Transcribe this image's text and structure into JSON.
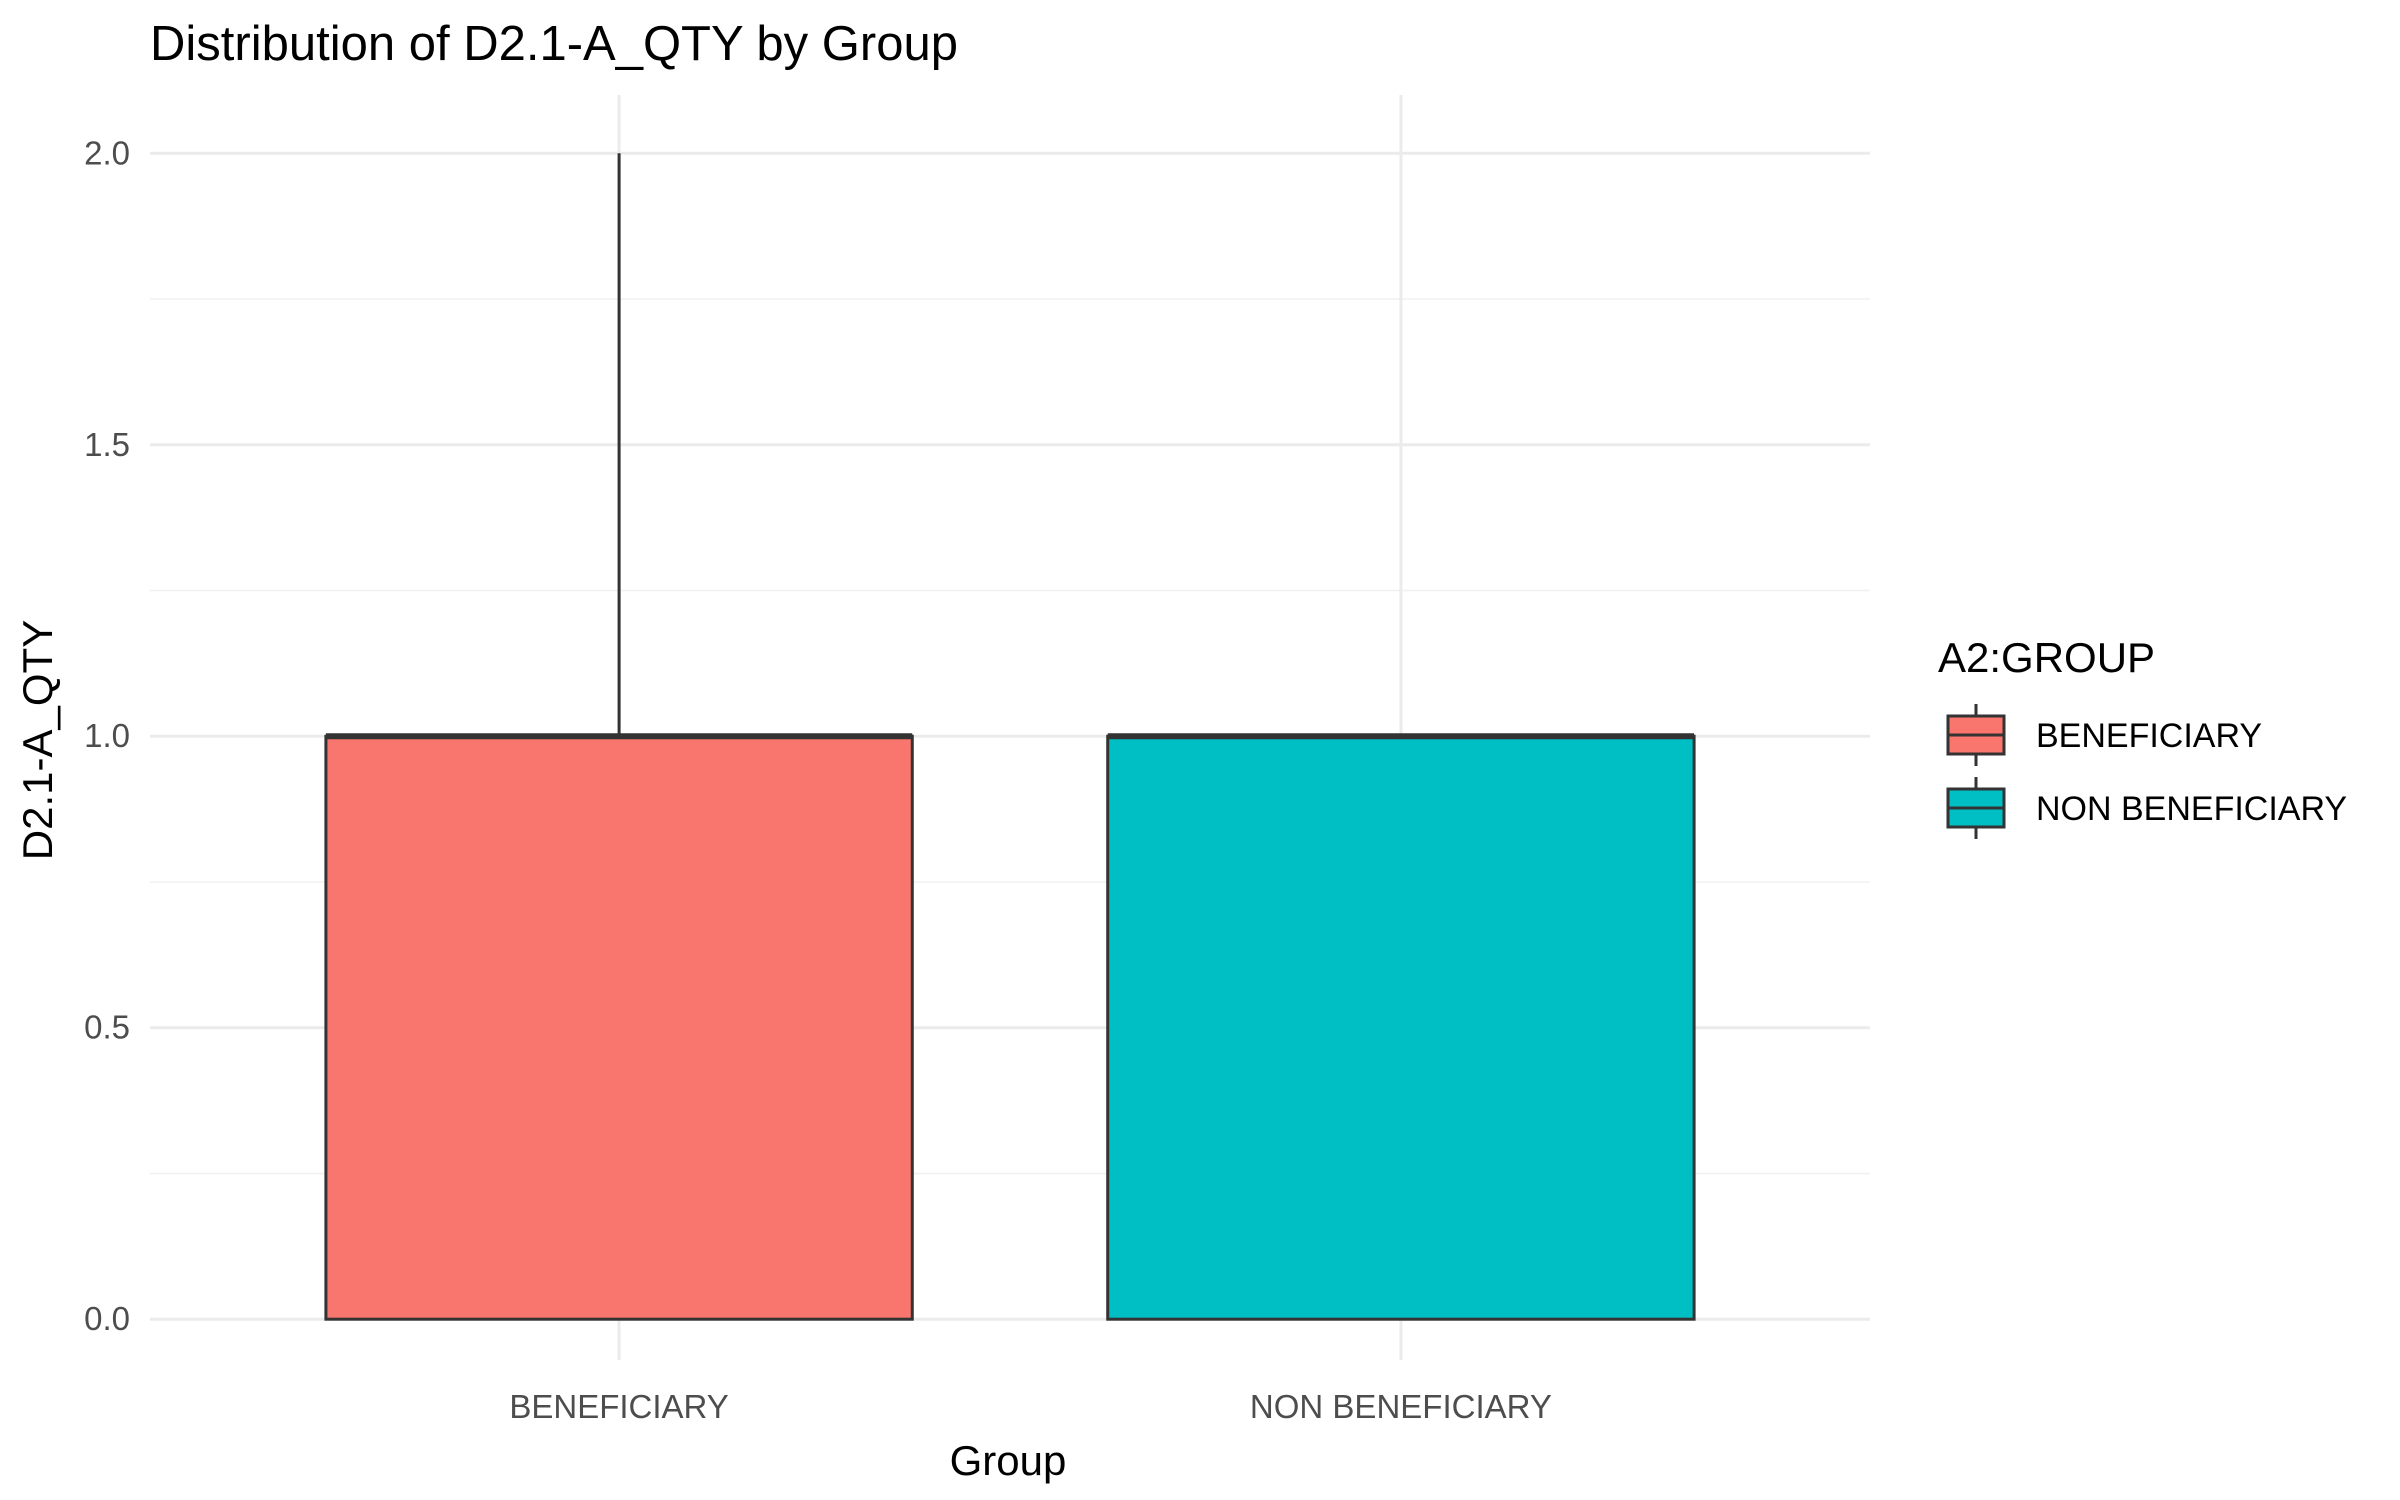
{
  "chart_data": {
    "type": "boxplot",
    "title": "Distribution of D2.1-A_QTY by Group",
    "xlabel": "Group",
    "ylabel": "D2.1-A_QTY",
    "ylim": [
      -0.07,
      2.1
    ],
    "y_ticks": [
      0.0,
      0.5,
      1.0,
      1.5,
      2.0
    ],
    "y_tick_labels": [
      "0.0",
      "0.5",
      "1.0",
      "1.5",
      "2.0"
    ],
    "categories": [
      "BENEFICIARY",
      "NON BENEFICIARY"
    ],
    "grid": true,
    "legend": {
      "title": "A2:GROUP",
      "position": "right",
      "entries": [
        "BENEFICIARY",
        "NON BENEFICIARY"
      ]
    },
    "series": [
      {
        "name": "BENEFICIARY",
        "color": "#F8766D",
        "min": 0,
        "q1": 0,
        "median": 1,
        "q3": 1,
        "max": 2
      },
      {
        "name": "NON BENEFICIARY",
        "color": "#00BFC4",
        "min": 0,
        "q1": 0,
        "median": 1,
        "q3": 1,
        "max": 1
      }
    ]
  }
}
